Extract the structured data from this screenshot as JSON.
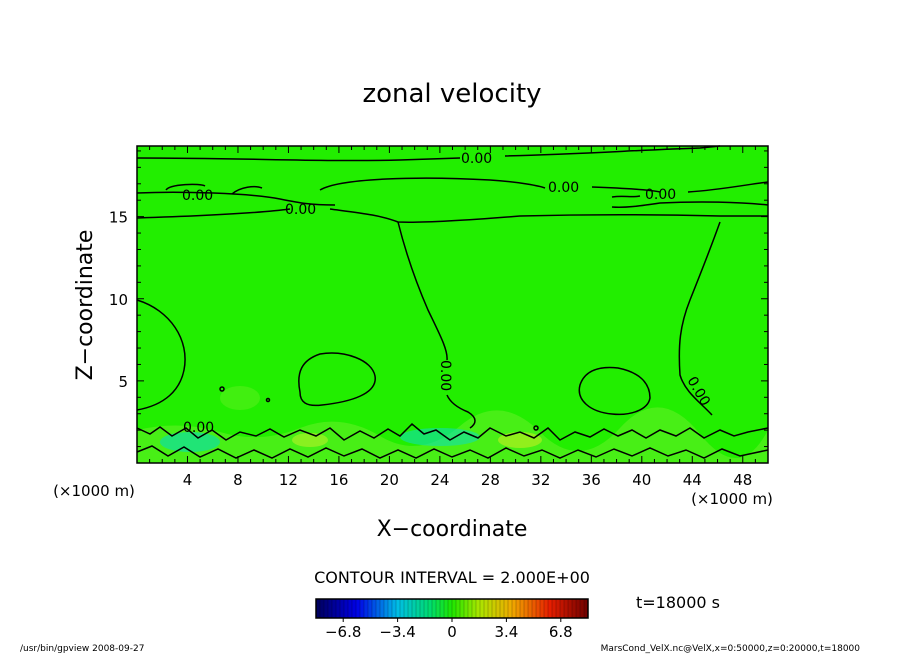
{
  "chart_data": {
    "type": "heatmap",
    "title": "zonal velocity",
    "xlabel": "X−coordinate",
    "ylabel": "Z−coordinate",
    "x_unit": "(×1000 m)",
    "z_unit": "(×1000 m)",
    "xlim": [
      0,
      50
    ],
    "ylim": [
      0,
      19.3
    ],
    "x_ticks": [
      4,
      8,
      12,
      16,
      20,
      24,
      28,
      32,
      36,
      40,
      44,
      48
    ],
    "y_ticks": [
      5,
      10,
      15
    ],
    "contour_interval_label": "CONTOUR INTERVAL = 2.000E+00",
    "time_label": "t=18000 s",
    "colorbar": {
      "min": -8.5,
      "max": 8.5,
      "ticks": [
        -6.8,
        -3.4,
        0,
        3.4,
        6.8
      ],
      "tick_labels": [
        "−6.8",
        "−3.4",
        "0",
        "3.4",
        "6.8"
      ]
    },
    "contour_labels": [
      "0.00",
      "0.00",
      "0.00",
      "0.00",
      "0.00",
      "0.00",
      "0.00",
      "0.00"
    ],
    "dominant_value": 0.0,
    "colors": {
      "field": "#22ee00",
      "line": "#000000"
    }
  },
  "footer": {
    "program": "/usr/bin/gpview  2008-09-27",
    "source": "MarsCond_VelX.nc@VelX,x=0:50000,z=0:20000,t=18000"
  }
}
